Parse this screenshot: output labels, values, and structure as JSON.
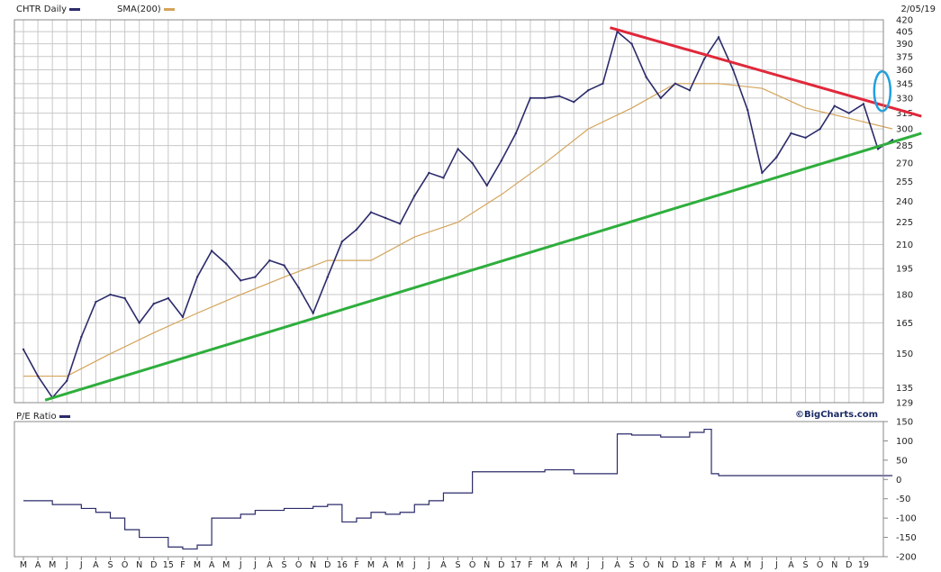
{
  "header": {
    "symbol_label": "CHTR Daily",
    "sma_label": "SMA(200)",
    "date": "2/05/19",
    "pe_label": "P/E Ratio",
    "watermark": "©BigCharts.com"
  },
  "colors": {
    "price": "#2b2b6b",
    "sma": "#d4a45a",
    "pe": "#2b2b6b",
    "resistance": "#e0283a",
    "support": "#2eae3c",
    "highlight": "#1fa0e0",
    "grid": "#c8c8c8"
  },
  "chart_data": [
    {
      "type": "line",
      "title": "CHTR Daily",
      "ylim": [
        129,
        420
      ],
      "y_scale": "log",
      "y_ticks": [
        129,
        135,
        150,
        165,
        180,
        195,
        210,
        225,
        240,
        255,
        270,
        285,
        300,
        315,
        330,
        345,
        360,
        375,
        390,
        405,
        420
      ],
      "x_tick_labels": [
        "M",
        "A",
        "M",
        "J",
        "J",
        "A",
        "S",
        "O",
        "N",
        "D",
        "15",
        "F",
        "M",
        "A",
        "M",
        "J",
        "J",
        "A",
        "S",
        "O",
        "N",
        "D",
        "16",
        "F",
        "M",
        "A",
        "M",
        "J",
        "J",
        "A",
        "S",
        "O",
        "N",
        "D",
        "17",
        "F",
        "M",
        "A",
        "M",
        "J",
        "J",
        "A",
        "S",
        "O",
        "N",
        "D",
        "18",
        "F",
        "M",
        "A",
        "M",
        "J",
        "J",
        "A",
        "S",
        "O",
        "N",
        "D",
        "19"
      ],
      "grid": true,
      "series": [
        {
          "name": "CHTR Daily",
          "x": [
            0,
            1,
            2,
            3,
            4,
            5,
            6,
            7,
            8,
            9,
            10,
            11,
            12,
            13,
            14,
            15,
            16,
            17,
            18,
            19,
            20,
            21,
            22,
            23,
            24,
            25,
            26,
            27,
            28,
            29,
            30,
            31,
            32,
            33,
            34,
            35,
            36,
            37,
            38,
            39,
            40,
            41,
            42,
            43,
            44,
            45,
            46,
            47,
            48,
            49,
            50,
            51,
            52,
            53,
            54,
            55,
            56,
            57,
            58,
            59,
            60
          ],
          "values": [
            152,
            140,
            131,
            138,
            158,
            176,
            180,
            178,
            165,
            175,
            178,
            168,
            190,
            206,
            198,
            188,
            190,
            200,
            197,
            184,
            170,
            190,
            212,
            220,
            232,
            228,
            224,
            244,
            262,
            258,
            282,
            270,
            252,
            272,
            296,
            330,
            330,
            332,
            326,
            338,
            345,
            405,
            390,
            352,
            330,
            345,
            338,
            372,
            398,
            360,
            318,
            262,
            275,
            296,
            292,
            300,
            322,
            315,
            324,
            282,
            290
          ]
        },
        {
          "name": "SMA(200)",
          "x": [
            0,
            3,
            6,
            9,
            12,
            15,
            18,
            21,
            24,
            27,
            30,
            33,
            36,
            39,
            42,
            45,
            48,
            51,
            54,
            57,
            60
          ],
          "values": [
            140,
            140,
            150,
            160,
            170,
            180,
            190,
            200,
            200,
            215,
            225,
            245,
            270,
            300,
            320,
            345,
            345,
            340,
            320,
            310,
            300
          ]
        }
      ],
      "annotations": [
        {
          "kind": "trendline",
          "color": "red",
          "from": {
            "x": 40.5,
            "y": 410
          },
          "to": {
            "x": 62,
            "y": 312
          }
        },
        {
          "kind": "trendline",
          "color": "green",
          "from": {
            "x": 1.5,
            "y": 130
          },
          "to": {
            "x": 62,
            "y": 296
          }
        },
        {
          "kind": "ellipse",
          "color": "blue",
          "center": {
            "x": 59.3,
            "y": 337
          }
        }
      ]
    },
    {
      "type": "line",
      "title": "P/E Ratio",
      "ylim": [
        -200,
        150
      ],
      "y_ticks": [
        150,
        100,
        50,
        0,
        -50,
        -100,
        -150,
        -200
      ],
      "grid": false,
      "series": [
        {
          "name": "P/E Ratio",
          "x": [
            0,
            2,
            4,
            5,
            6,
            7,
            8,
            9,
            10,
            11,
            12,
            13,
            14,
            15,
            16,
            18,
            20,
            21,
            22,
            23,
            24,
            25,
            26,
            27,
            28,
            29,
            30,
            31,
            32,
            36,
            38,
            40,
            41,
            42,
            44,
            46,
            47,
            47.5,
            48,
            52,
            56,
            60
          ],
          "values": [
            -55,
            -65,
            -75,
            -85,
            -100,
            -130,
            -150,
            -150,
            -175,
            -180,
            -170,
            -100,
            -100,
            -90,
            -80,
            -75,
            -70,
            -65,
            -110,
            -100,
            -85,
            -90,
            -85,
            -65,
            -55,
            -35,
            -35,
            20,
            20,
            25,
            15,
            15,
            118,
            115,
            110,
            122,
            130,
            15,
            10,
            10,
            10,
            10
          ]
        }
      ]
    }
  ]
}
